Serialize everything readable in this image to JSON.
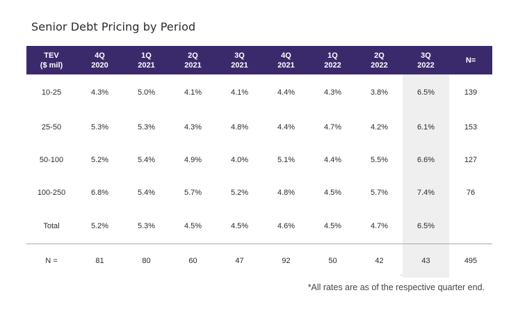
{
  "chart_data": {
    "type": "table",
    "title": "Senior Debt Pricing by Period",
    "columns": [
      {
        "line1": "TEV",
        "line2": "($ mil)"
      },
      {
        "line1": "4Q",
        "line2": "2020"
      },
      {
        "line1": "1Q",
        "line2": "2021"
      },
      {
        "line1": "2Q",
        "line2": "2021"
      },
      {
        "line1": "3Q",
        "line2": "2021"
      },
      {
        "line1": "4Q",
        "line2": "2021"
      },
      {
        "line1": "1Q",
        "line2": "2022"
      },
      {
        "line1": "2Q",
        "line2": "2022"
      },
      {
        "line1": "3Q",
        "line2": "2022"
      },
      {
        "line1": "N=",
        "line2": ""
      }
    ],
    "rows": [
      {
        "label": "10-25",
        "cells": [
          "4.3%",
          "5.0%",
          "4.1%",
          "4.1%",
          "4.4%",
          "4.3%",
          "3.8%",
          "6.5%",
          "139"
        ]
      },
      {
        "label": "25-50",
        "cells": [
          "5.3%",
          "5.3%",
          "4.3%",
          "4.8%",
          "4.4%",
          "4.7%",
          "4.2%",
          "6.1%",
          "153"
        ]
      },
      {
        "label": "50-100",
        "cells": [
          "5.2%",
          "5.4%",
          "4.9%",
          "4.0%",
          "5.1%",
          "4.4%",
          "5.5%",
          "6.6%",
          "127"
        ]
      },
      {
        "label": "100-250",
        "cells": [
          "6.8%",
          "5.4%",
          "5.7%",
          "5.2%",
          "4.8%",
          "4.5%",
          "5.7%",
          "7.4%",
          "76"
        ]
      },
      {
        "label": "Total",
        "cells": [
          "5.2%",
          "5.3%",
          "4.5%",
          "4.5%",
          "4.6%",
          "4.5%",
          "4.7%",
          "6.5%",
          ""
        ]
      }
    ],
    "n_row": {
      "label": "N =",
      "cells": [
        "81",
        "80",
        "60",
        "47",
        "92",
        "50",
        "42",
        "43",
        "495"
      ]
    },
    "highlighted_column": "3Q 2022",
    "footnote": "*All rates are as of the respective quarter end."
  },
  "colors": {
    "header_bg": "#3b2a6b",
    "header_text": "#ffffff",
    "highlight_bg": "#efefef",
    "divider": "#a9a9a9"
  }
}
